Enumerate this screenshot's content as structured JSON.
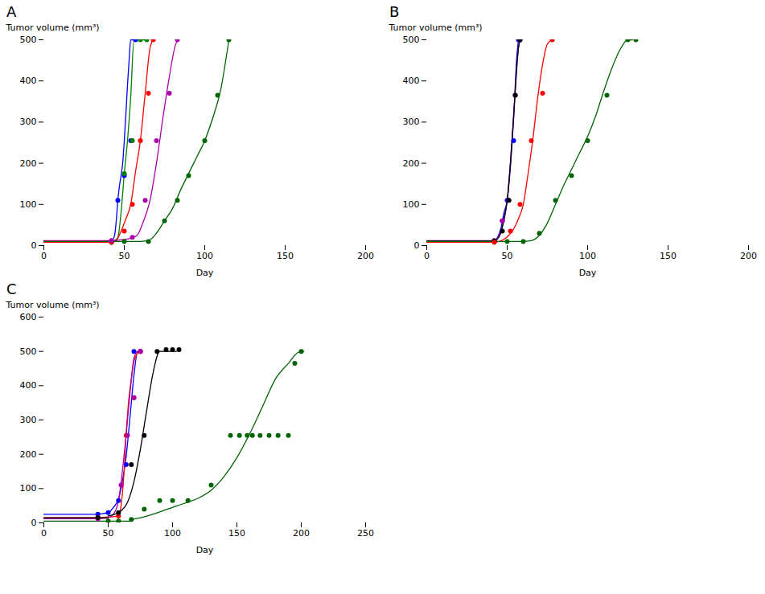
{
  "chart_data": [
    {
      "type": "scatter",
      "title": "A",
      "xlabel": "Day",
      "ylabel": "Tumor volume (mm³)",
      "xlim": [
        0,
        200
      ],
      "ylim": [
        0,
        500
      ],
      "xticks": [
        0,
        50,
        100,
        150,
        200
      ],
      "yticks": [
        0,
        100,
        200,
        300,
        400,
        500
      ],
      "series": [
        {
          "color": "#0000FF",
          "scatter_x": [
            42,
            46,
            50,
            54,
            57
          ],
          "scatter_y": [
            10,
            110,
            170,
            255,
            500
          ],
          "baseline_x": [
            0,
            42
          ],
          "baseline_y": 10,
          "curve_x": [
            42,
            43,
            44,
            45,
            46,
            47,
            48,
            49,
            50,
            51,
            52,
            53,
            54,
            55,
            56,
            57
          ],
          "curve_y": [
            10,
            15,
            25,
            60,
            110,
            145,
            170,
            200,
            255,
            320,
            390,
            450,
            500,
            500,
            500,
            500
          ]
        },
        {
          "color": "#008000",
          "scatter_x": [
            42,
            50,
            55,
            60,
            64
          ],
          "scatter_y": [
            8,
            175,
            255,
            500,
            500
          ],
          "baseline_x": [
            0,
            42
          ],
          "baseline_y": 8,
          "curve_x": [
            42,
            44,
            46,
            48,
            50,
            52,
            54,
            56,
            58,
            60,
            62,
            64
          ],
          "curve_y": [
            8,
            12,
            20,
            80,
            175,
            255,
            360,
            500,
            500,
            500,
            500,
            500
          ]
        },
        {
          "color": "#FF0000",
          "scatter_x": [
            42,
            50,
            55,
            60,
            65,
            68
          ],
          "scatter_y": [
            8,
            35,
            100,
            255,
            370,
            500
          ],
          "baseline_x": [
            0,
            42
          ],
          "baseline_y": 8,
          "curve_x": [
            42,
            45,
            48,
            51,
            54,
            57,
            60,
            63,
            66,
            68
          ],
          "curve_y": [
            8,
            12,
            35,
            65,
            100,
            180,
            255,
            370,
            480,
            500
          ]
        },
        {
          "color": "#AA00AA",
          "scatter_x": [
            42,
            55,
            63,
            70,
            78,
            83
          ],
          "scatter_y": [
            12,
            20,
            110,
            255,
            370,
            500
          ],
          "baseline_x": [
            0,
            42
          ],
          "baseline_y": 12,
          "curve_x": [
            42,
            46,
            50,
            54,
            58,
            62,
            66,
            70,
            74,
            78,
            82,
            84
          ],
          "curve_y": [
            12,
            13,
            15,
            18,
            25,
            60,
            110,
            200,
            310,
            410,
            490,
            500
          ]
        },
        {
          "color": "#006400",
          "scatter_x": [
            50,
            65,
            75,
            83,
            90,
            100,
            108,
            115
          ],
          "scatter_y": [
            10,
            10,
            60,
            110,
            170,
            255,
            365,
            500
          ],
          "baseline_x": [
            0,
            60
          ],
          "baseline_y": 10,
          "curve_x": [
            60,
            65,
            70,
            75,
            80,
            85,
            90,
            95,
            100,
            105,
            110,
            115
          ],
          "curve_y": [
            10,
            12,
            30,
            60,
            90,
            135,
            175,
            215,
            255,
            310,
            380,
            500
          ]
        }
      ]
    },
    {
      "type": "scatter",
      "title": "B",
      "xlabel": "Day",
      "ylabel": "Tumor volume (mm³)",
      "xlim": [
        0,
        200
      ],
      "ylim": [
        0,
        500
      ],
      "xticks": [
        0,
        50,
        100,
        150,
        200
      ],
      "yticks": [
        0,
        100,
        200,
        300,
        400,
        500
      ],
      "series": [
        {
          "color": "#0000FF",
          "scatter_x": [
            42,
            47,
            50,
            54,
            57
          ],
          "scatter_y": [
            10,
            60,
            110,
            255,
            500
          ],
          "baseline_x": [
            0,
            42
          ],
          "baseline_y": 10,
          "curve_x": [
            42,
            44,
            46,
            48,
            50,
            52,
            54,
            56,
            57
          ],
          "curve_y": [
            10,
            20,
            40,
            80,
            110,
            190,
            310,
            460,
            500
          ]
        },
        {
          "color": "#AA00AA",
          "scatter_x": [
            42,
            47,
            51,
            55,
            58
          ],
          "scatter_y": [
            12,
            60,
            110,
            365,
            500
          ],
          "baseline_x": [
            0,
            42
          ],
          "baseline_y": 12,
          "curve_x": [
            42,
            44,
            46,
            48,
            50,
            52,
            54,
            56,
            57,
            58
          ],
          "curve_y": [
            12,
            18,
            35,
            60,
            110,
            200,
            320,
            430,
            480,
            500
          ]
        },
        {
          "color": "#000000",
          "scatter_x": [
            42,
            47,
            51,
            55,
            58
          ],
          "scatter_y": [
            11,
            35,
            110,
            365,
            500
          ],
          "baseline_x": [
            0,
            42
          ],
          "baseline_y": 11,
          "curve_x": [
            42,
            44,
            46,
            48,
            50,
            52,
            54,
            56,
            57,
            58
          ],
          "curve_y": [
            11,
            16,
            30,
            65,
            110,
            200,
            310,
            440,
            480,
            500
          ]
        },
        {
          "color": "#FF0000",
          "scatter_x": [
            42,
            52,
            58,
            65,
            72,
            78
          ],
          "scatter_y": [
            8,
            35,
            100,
            255,
            370,
            500
          ],
          "baseline_x": [
            0,
            42
          ],
          "baseline_y": 8,
          "curve_x": [
            42,
            45,
            48,
            51,
            54,
            57,
            60,
            63,
            66,
            69,
            72,
            75,
            78
          ],
          "curve_y": [
            8,
            10,
            15,
            25,
            40,
            65,
            100,
            175,
            260,
            360,
            440,
            490,
            500
          ]
        },
        {
          "color": "#006400",
          "scatter_x": [
            50,
            60,
            70,
            80,
            90,
            100,
            112,
            125,
            130
          ],
          "scatter_y": [
            10,
            10,
            30,
            110,
            170,
            255,
            365,
            500,
            500
          ],
          "baseline_x": [
            0,
            60
          ],
          "baseline_y": 10,
          "curve_x": [
            60,
            65,
            70,
            75,
            80,
            85,
            90,
            95,
            100,
            105,
            110,
            115,
            120,
            125,
            128
          ],
          "curve_y": [
            10,
            12,
            25,
            55,
            100,
            145,
            185,
            225,
            265,
            315,
            375,
            430,
            475,
            500,
            500
          ]
        }
      ]
    },
    {
      "type": "scatter",
      "title": "C",
      "xlabel": "Day",
      "ylabel": "Tumor volume (mm³)",
      "xlim": [
        0,
        250
      ],
      "ylim": [
        0,
        600
      ],
      "xticks": [
        0,
        50,
        100,
        150,
        200,
        250
      ],
      "yticks": [
        0,
        100,
        200,
        300,
        400,
        500,
        600
      ],
      "series": [
        {
          "color": "#0000FF",
          "scatter_x": [
            42,
            50,
            58,
            64,
            70,
            75
          ],
          "scatter_y": [
            25,
            30,
            65,
            170,
            500,
            500
          ],
          "baseline_x": [
            0,
            42
          ],
          "baseline_y": 25,
          "curve_x": [
            42,
            46,
            50,
            54,
            58,
            61,
            64,
            67,
            70,
            73,
            75
          ],
          "curve_y": [
            25,
            27,
            30,
            45,
            70,
            120,
            195,
            310,
            430,
            500,
            500
          ]
        },
        {
          "color": "#FF0000",
          "scatter_x": [
            42,
            58,
            64,
            70,
            75
          ],
          "scatter_y": [
            15,
            20,
            255,
            365,
            500
          ],
          "baseline_x": [
            0,
            42
          ],
          "baseline_y": 15,
          "curve_x": [
            42,
            46,
            50,
            54,
            58,
            60,
            62,
            64,
            66,
            68,
            70,
            72,
            74,
            75
          ],
          "curve_y": [
            15,
            16,
            17,
            18,
            20,
            50,
            130,
            260,
            360,
            420,
            470,
            490,
            500,
            500
          ]
        },
        {
          "color": "#AA00AA",
          "scatter_x": [
            42,
            60,
            65,
            70,
            75
          ],
          "scatter_y": [
            12,
            110,
            255,
            365,
            500
          ],
          "baseline_x": [
            0,
            42
          ],
          "baseline_y": 12,
          "curve_x": [
            42,
            46,
            50,
            54,
            58,
            61,
            64,
            67,
            70,
            73,
            75
          ],
          "curve_y": [
            12,
            13,
            15,
            25,
            65,
            150,
            260,
            380,
            480,
            500,
            500
          ]
        },
        {
          "color": "#000000",
          "scatter_x": [
            42,
            58,
            68,
            78,
            88,
            95,
            100,
            105
          ],
          "scatter_y": [
            15,
            30,
            170,
            255,
            500,
            505,
            505,
            505
          ],
          "baseline_x": [
            0,
            50
          ],
          "baseline_y": 15,
          "curve_x": [
            50,
            55,
            60,
            65,
            70,
            75,
            80,
            85,
            90,
            95,
            100,
            103
          ],
          "curve_y": [
            20,
            25,
            35,
            60,
            120,
            215,
            330,
            440,
            500,
            500,
            500,
            500
          ]
        },
        {
          "color": "#006400",
          "scatter_x": [
            50,
            58,
            68,
            78,
            90,
            100,
            112,
            130,
            145,
            152,
            158,
            162,
            168,
            175,
            182,
            190,
            195,
            200
          ],
          "scatter_y": [
            5,
            5,
            10,
            40,
            65,
            65,
            65,
            110,
            255,
            255,
            255,
            255,
            255,
            255,
            255,
            255,
            465,
            500
          ],
          "baseline_x": [
            0,
            68
          ],
          "baseline_y": 5,
          "curve_x": [
            68,
            75,
            82,
            90,
            100,
            110,
            120,
            130,
            140,
            150,
            160,
            170,
            180,
            190,
            198,
            202
          ],
          "curve_y": [
            10,
            15,
            22,
            32,
            45,
            58,
            72,
            95,
            135,
            190,
            260,
            340,
            420,
            465,
            498,
            500
          ]
        }
      ]
    }
  ]
}
